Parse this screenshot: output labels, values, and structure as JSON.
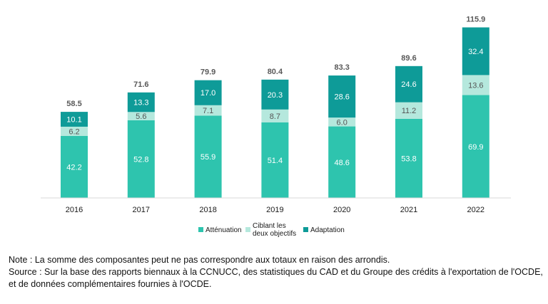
{
  "chart_data": {
    "type": "bar",
    "stacked": true,
    "categories": [
      "2016",
      "2017",
      "2018",
      "2019",
      "2020",
      "2021",
      "2022"
    ],
    "series": [
      {
        "name": "Atténuation",
        "color": "#2ec4ae",
        "values": [
          42.2,
          52.8,
          55.9,
          51.4,
          48.6,
          53.8,
          69.9
        ]
      },
      {
        "name": "Ciblant les deux objectifs",
        "name_lines": [
          "Ciblant les",
          "deux objectifs"
        ],
        "color": "#b5e8dd",
        "values": [
          6.2,
          5.6,
          7.1,
          8.7,
          6.0,
          11.2,
          13.6
        ]
      },
      {
        "name": "Adaptation",
        "color": "#0e9b98",
        "values": [
          10.1,
          13.3,
          17.0,
          20.3,
          28.6,
          24.6,
          32.4
        ]
      }
    ],
    "totals": [
      58.5,
      71.6,
      79.9,
      80.4,
      83.3,
      89.6,
      115.9
    ],
    "ylim": [
      0,
      120
    ],
    "grid": false,
    "legend_position": "bottom"
  },
  "notes": {
    "note": "Note : La somme des composantes peut ne pas correspondre aux totaux en raison des arrondis.",
    "source": "Source : Sur la base des rapports biennaux à la CCNUCC, des statistiques du CAD et du Groupe des crédits à l'exportation de l'OCDE, et de données complémentaires fournies à l'OCDE."
  }
}
